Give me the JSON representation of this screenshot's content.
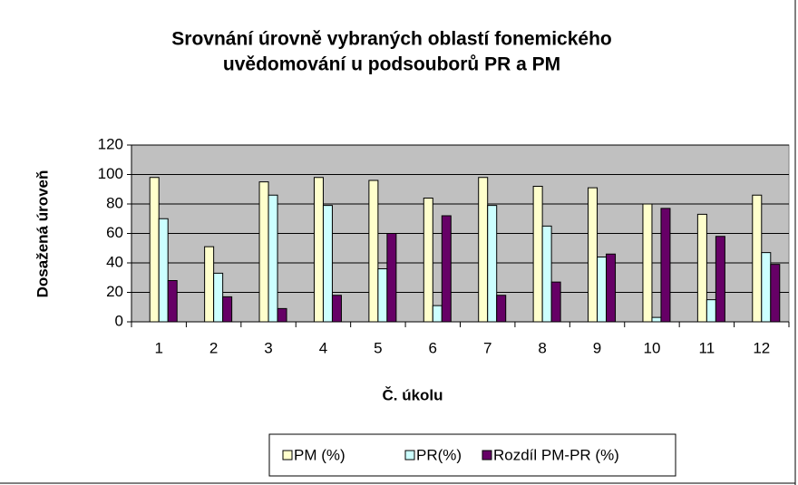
{
  "chart_data": {
    "type": "bar",
    "title": [
      "Srovnání úrovně vybraných oblastí fonemického",
      "uvědomování u podsouborů PR a PM"
    ],
    "x_label": "Č. úkolu",
    "y_label": "Dosažená úroveň",
    "categories": [
      "1",
      "2",
      "3",
      "4",
      "5",
      "6",
      "7",
      "8",
      "9",
      "10",
      "11",
      "12"
    ],
    "series": [
      {
        "name": "PM (%)",
        "color": "#ffffcc",
        "values": [
          98,
          51,
          95,
          98,
          96,
          84,
          98,
          92,
          91,
          80,
          73,
          86
        ]
      },
      {
        "name": "PR(%)",
        "color": "#ccffff",
        "values": [
          70,
          33,
          86,
          79,
          36,
          11,
          79,
          65,
          44,
          3,
          15,
          47
        ]
      },
      {
        "name": "Rozdíl PM-PR (%)",
        "color": "#660066",
        "values": [
          28,
          17,
          9,
          18,
          60,
          72,
          18,
          27,
          46,
          77,
          58,
          39
        ]
      }
    ],
    "ylim": [
      0,
      120
    ],
    "yticks": [
      0,
      20,
      40,
      60,
      80,
      100,
      120
    ],
    "grid": true,
    "legend": "bottom"
  }
}
